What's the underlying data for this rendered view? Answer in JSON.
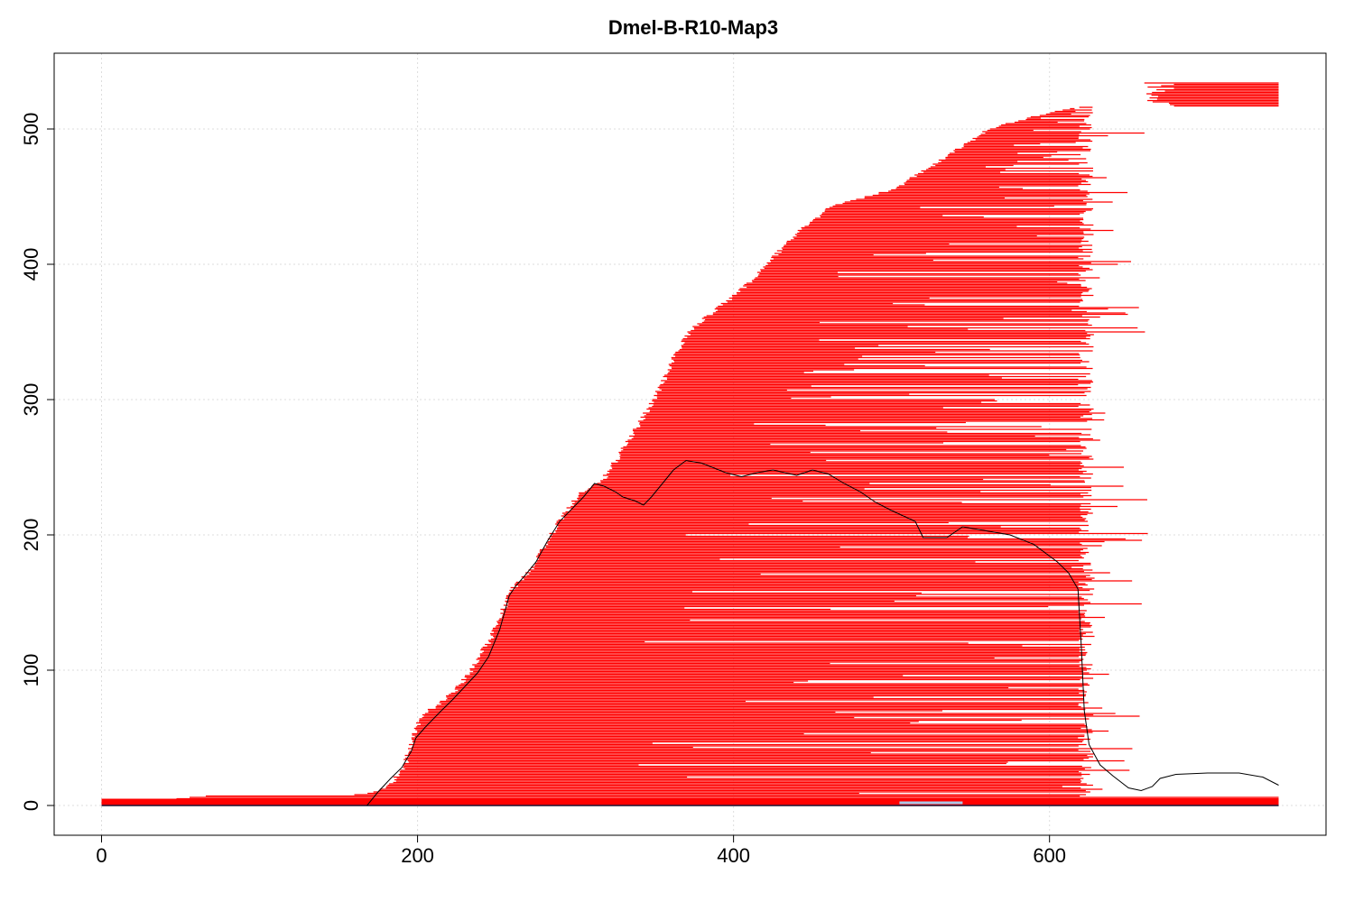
{
  "chart_data": {
    "type": "segments",
    "title": "Dmel-B-R10-Map3",
    "xlabel": "",
    "ylabel": "",
    "xlim": [
      -30,
      775
    ],
    "ylim": [
      -22,
      556
    ],
    "x_ticks": [
      0,
      200,
      400,
      600
    ],
    "y_ticks": [
      0,
      100,
      200,
      300,
      400,
      500
    ],
    "x_tick_labels": [
      "0",
      "200",
      "400",
      "600"
    ],
    "y_tick_labels": [
      "0",
      "100",
      "200",
      "300",
      "400",
      "500"
    ],
    "grid": true,
    "segment_color": "#ff0000",
    "coverage_color": "#000000",
    "segment_count": 535,
    "segment_ends_x": 745,
    "segment_start_profile": [
      [
        0,
        0
      ],
      [
        6,
        0
      ],
      [
        64,
        7
      ],
      [
        150,
        7
      ],
      [
        168,
        9
      ],
      [
        180,
        14
      ],
      [
        190,
        30
      ],
      [
        195,
        48
      ],
      [
        200,
        66
      ],
      [
        210,
        74
      ],
      [
        222,
        85
      ],
      [
        232,
        100
      ],
      [
        245,
        125
      ],
      [
        258,
        160
      ],
      [
        270,
        175
      ],
      [
        285,
        205
      ],
      [
        300,
        230
      ],
      [
        315,
        240
      ],
      [
        332,
        270
      ],
      [
        345,
        295
      ],
      [
        350,
        305
      ],
      [
        360,
        330
      ],
      [
        370,
        350
      ],
      [
        385,
        365
      ],
      [
        400,
        378
      ],
      [
        415,
        395
      ],
      [
        440,
        425
      ],
      [
        460,
        443
      ],
      [
        480,
        449
      ],
      [
        500,
        456
      ],
      [
        520,
        470
      ],
      [
        540,
        485
      ],
      [
        560,
        500
      ],
      [
        590,
        510
      ],
      [
        620,
        517
      ],
      [
        640,
        517
      ]
    ],
    "tail_segments": {
      "start": 660,
      "end": 745,
      "y_from": 517,
      "y_to": 535
    },
    "baseline_band": {
      "y_from": 0,
      "y_to": 5,
      "x_from": 0,
      "x_to": 745
    },
    "highlight_segment": {
      "x_from": 505,
      "x_to": 545,
      "y": 2,
      "color": "#a8c8e8"
    },
    "coverage_line": [
      [
        168,
        0
      ],
      [
        175,
        10
      ],
      [
        183,
        20
      ],
      [
        190,
        28
      ],
      [
        196,
        40
      ],
      [
        199,
        50
      ],
      [
        205,
        58
      ],
      [
        215,
        70
      ],
      [
        222,
        78
      ],
      [
        230,
        88
      ],
      [
        238,
        98
      ],
      [
        245,
        110
      ],
      [
        252,
        130
      ],
      [
        258,
        155
      ],
      [
        262,
        162
      ],
      [
        268,
        170
      ],
      [
        275,
        180
      ],
      [
        282,
        195
      ],
      [
        290,
        210
      ],
      [
        300,
        222
      ],
      [
        305,
        228
      ],
      [
        312,
        238
      ],
      [
        318,
        236
      ],
      [
        325,
        232
      ],
      [
        330,
        228
      ],
      [
        338,
        225
      ],
      [
        343,
        222
      ],
      [
        348,
        228
      ],
      [
        355,
        238
      ],
      [
        362,
        248
      ],
      [
        370,
        255
      ],
      [
        380,
        253
      ],
      [
        395,
        246
      ],
      [
        405,
        243
      ],
      [
        415,
        246
      ],
      [
        425,
        248
      ],
      [
        440,
        244
      ],
      [
        450,
        248
      ],
      [
        460,
        245
      ],
      [
        470,
        238
      ],
      [
        480,
        232
      ],
      [
        490,
        224
      ],
      [
        500,
        218
      ],
      [
        515,
        210
      ],
      [
        520,
        198
      ],
      [
        535,
        198
      ],
      [
        545,
        206
      ],
      [
        555,
        204
      ],
      [
        565,
        202
      ],
      [
        575,
        200
      ],
      [
        590,
        193
      ],
      [
        605,
        180
      ],
      [
        612,
        172
      ],
      [
        618,
        160
      ],
      [
        620,
        120
      ],
      [
        622,
        70
      ],
      [
        625,
        45
      ],
      [
        632,
        30
      ],
      [
        640,
        22
      ],
      [
        650,
        13
      ],
      [
        658,
        11
      ],
      [
        665,
        14
      ],
      [
        670,
        20
      ],
      [
        680,
        23
      ],
      [
        700,
        24
      ],
      [
        720,
        24
      ],
      [
        735,
        21
      ],
      [
        745,
        15
      ]
    ]
  }
}
